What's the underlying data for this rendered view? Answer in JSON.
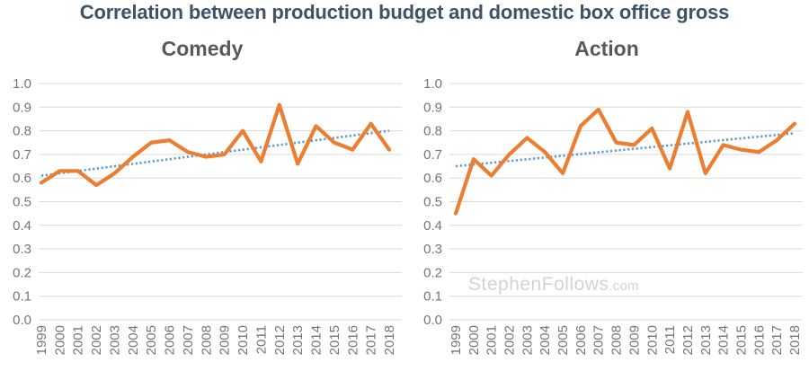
{
  "page": {
    "title": "Correlation between production budget and domestic box office gross"
  },
  "watermark": {
    "main": "StephenFollows",
    "suffix": ".com"
  },
  "colors": {
    "title": "#3E5368",
    "chart_title": "#595959",
    "series_line": "#ED7D31",
    "trend_line": "#5B9BD5",
    "gridline": "#D9D9D9",
    "tick_label": "#757575",
    "watermark": "#D3D3D3",
    "background": "#FFFFFF"
  },
  "chart_data": [
    {
      "type": "line",
      "title": "Comedy",
      "xlabel": "",
      "ylabel": "",
      "ylim": [
        0.0,
        1.0
      ],
      "grid": "horizontal",
      "legend": "none",
      "yticks": [
        "0.0",
        "0.1",
        "0.2",
        "0.3",
        "0.4",
        "0.5",
        "0.6",
        "0.7",
        "0.8",
        "0.9",
        "1.0"
      ],
      "x": [
        "1999",
        "2000",
        "2001",
        "2002",
        "2003",
        "2004",
        "2005",
        "2006",
        "2007",
        "2008",
        "2009",
        "2010",
        "2011",
        "2012",
        "2013",
        "2014",
        "2015",
        "2016",
        "2017",
        "2018"
      ],
      "series": [
        {
          "name": "correlation",
          "style": "solid",
          "values": [
            0.58,
            0.63,
            0.63,
            0.57,
            0.62,
            0.69,
            0.75,
            0.76,
            0.71,
            0.69,
            0.7,
            0.8,
            0.67,
            0.91,
            0.66,
            0.82,
            0.75,
            0.72,
            0.83,
            0.72
          ]
        },
        {
          "name": "trend",
          "style": "dotted",
          "endpoints": [
            0.61,
            0.8
          ]
        }
      ]
    },
    {
      "type": "line",
      "title": "Action",
      "xlabel": "",
      "ylabel": "",
      "ylim": [
        0.0,
        1.0
      ],
      "grid": "horizontal",
      "legend": "none",
      "yticks": [
        "0.0",
        "0.1",
        "0.2",
        "0.3",
        "0.4",
        "0.5",
        "0.6",
        "0.7",
        "0.8",
        "0.9",
        "1.0"
      ],
      "x": [
        "1999",
        "2000",
        "2001",
        "2002",
        "2003",
        "2004",
        "2005",
        "2006",
        "2007",
        "2008",
        "2009",
        "2010",
        "2011",
        "2012",
        "2013",
        "2014",
        "2015",
        "2016",
        "2017",
        "2018"
      ],
      "series": [
        {
          "name": "correlation",
          "style": "solid",
          "values": [
            0.45,
            0.68,
            0.61,
            0.7,
            0.77,
            0.71,
            0.62,
            0.82,
            0.89,
            0.75,
            0.74,
            0.81,
            0.64,
            0.88,
            0.62,
            0.74,
            0.72,
            0.71,
            0.76,
            0.83
          ]
        },
        {
          "name": "trend",
          "style": "dotted",
          "endpoints": [
            0.65,
            0.79
          ]
        }
      ]
    }
  ]
}
